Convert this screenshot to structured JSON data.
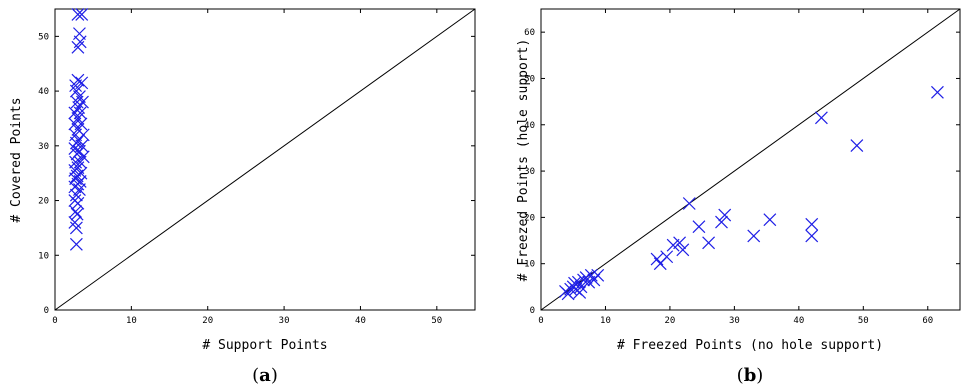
{
  "chart_data": [
    {
      "type": "scatter",
      "panel_label_prefix": "(",
      "panel_letter": "a",
      "panel_label_suffix": ")",
      "xlabel": "# Support Points",
      "ylabel": "# Covered Points",
      "xlim": [
        0,
        55
      ],
      "ylim": [
        0,
        55
      ],
      "xticks": [
        0,
        10,
        20,
        30,
        40,
        50
      ],
      "yticks": [
        0,
        10,
        20,
        30,
        40,
        50
      ],
      "reference_line": "y = x",
      "marker": "x",
      "color": "#1f1fe6",
      "points": [
        [
          3.5,
          54
        ],
        [
          3.0,
          54
        ],
        [
          3.2,
          50.5
        ],
        [
          3.3,
          49
        ],
        [
          3.0,
          48
        ],
        [
          3.0,
          42
        ],
        [
          2.7,
          41
        ],
        [
          3.5,
          41.5
        ],
        [
          2.8,
          40
        ],
        [
          3.2,
          39
        ],
        [
          2.9,
          38
        ],
        [
          3.6,
          38
        ],
        [
          3.1,
          37
        ],
        [
          2.6,
          36
        ],
        [
          3.3,
          36
        ],
        [
          3.0,
          35
        ],
        [
          2.6,
          34
        ],
        [
          3.4,
          34
        ],
        [
          3.0,
          33
        ],
        [
          2.7,
          32
        ],
        [
          3.7,
          32
        ],
        [
          3.1,
          31
        ],
        [
          2.8,
          30.5
        ],
        [
          3.5,
          30
        ],
        [
          2.6,
          29.5
        ],
        [
          3.2,
          29
        ],
        [
          2.9,
          28.5
        ],
        [
          3.7,
          28
        ],
        [
          2.7,
          27
        ],
        [
          3.3,
          27
        ],
        [
          3.0,
          26
        ],
        [
          2.6,
          25.5
        ],
        [
          3.4,
          25
        ],
        [
          2.9,
          24.5
        ],
        [
          2.7,
          24
        ],
        [
          3.3,
          23.5
        ],
        [
          3.0,
          23
        ],
        [
          2.6,
          22.5
        ],
        [
          3.2,
          22
        ],
        [
          2.8,
          21
        ],
        [
          2.6,
          20
        ],
        [
          3.0,
          19.5
        ],
        [
          2.7,
          18
        ],
        [
          2.9,
          17.5
        ],
        [
          2.6,
          16
        ],
        [
          2.8,
          15
        ],
        [
          2.8,
          12
        ]
      ]
    },
    {
      "type": "scatter",
      "panel_label_prefix": "(",
      "panel_letter": "b",
      "panel_label_suffix": ")",
      "xlabel": "# Freezed Points (no hole support)",
      "ylabel": "# Freezed Points (hole support)",
      "xlim": [
        0,
        65
      ],
      "ylim": [
        0,
        65
      ],
      "xticks": [
        0,
        10,
        20,
        30,
        40,
        50,
        60
      ],
      "yticks": [
        0,
        10,
        20,
        30,
        40,
        50,
        60
      ],
      "reference_line": "y = x",
      "marker": "x",
      "color": "#1f1fe6",
      "points": [
        [
          3.8,
          4
        ],
        [
          4.2,
          3.5
        ],
        [
          4.6,
          4.5
        ],
        [
          5,
          5
        ],
        [
          5.4,
          4.5
        ],
        [
          5.8,
          6
        ],
        [
          6.2,
          5
        ],
        [
          6.6,
          6.5
        ],
        [
          7,
          7
        ],
        [
          7.4,
          6
        ],
        [
          7.8,
          7.5
        ],
        [
          8.2,
          6.5
        ],
        [
          8.8,
          7.5
        ],
        [
          6,
          3.8
        ],
        [
          5.2,
          5.8
        ],
        [
          18,
          11
        ],
        [
          18.5,
          10
        ],
        [
          19.5,
          11.5
        ],
        [
          20.5,
          14
        ],
        [
          21.5,
          14.5
        ],
        [
          22,
          13
        ],
        [
          23,
          23
        ],
        [
          24.5,
          18
        ],
        [
          26,
          14.5
        ],
        [
          28,
          19
        ],
        [
          28.5,
          20.5
        ],
        [
          33,
          16
        ],
        [
          35.5,
          19.5
        ],
        [
          42,
          18.5
        ],
        [
          42,
          16
        ],
        [
          43.5,
          41.5
        ],
        [
          49,
          35.5
        ],
        [
          61.5,
          47
        ]
      ]
    }
  ]
}
